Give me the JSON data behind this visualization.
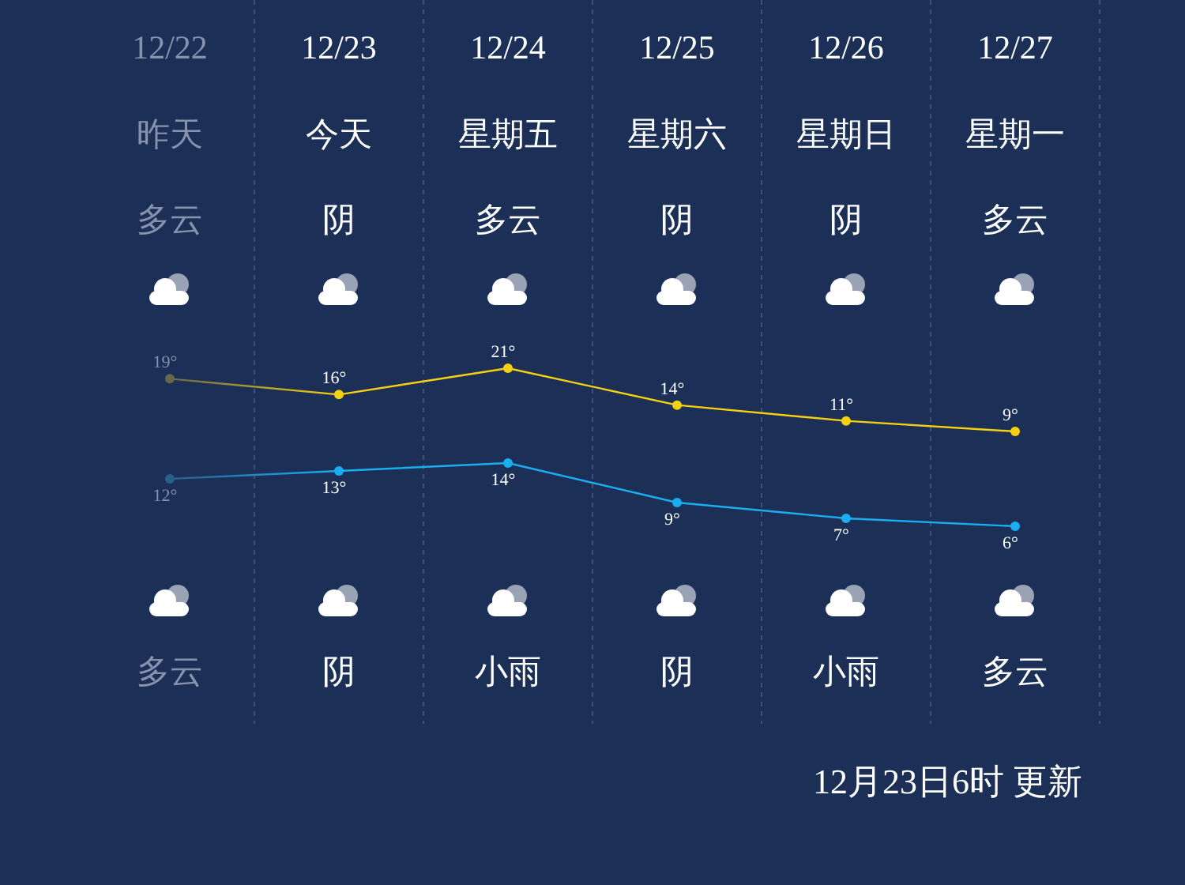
{
  "chart_data": [
    {
      "type": "line",
      "categories": [
        "12/22",
        "12/23",
        "12/24",
        "12/25",
        "12/26",
        "12/27"
      ],
      "series": [
        {
          "color": "#f5d10f",
          "colors": [
            "#67684a",
            "#f5d10f",
            "#f5d10f",
            "#f5d10f",
            "#f5d10f",
            "#f5d10f"
          ],
          "values": [
            19,
            16,
            21,
            14,
            11,
            9
          ],
          "value_labels": [
            "19°",
            "16°",
            "21°",
            "14°",
            "11°",
            "9°"
          ]
        }
      ],
      "grid": "x",
      "marker": "circle",
      "annotations": [
        "昨天",
        "今天",
        "星期五",
        "星期六",
        "星期日",
        "星期一",
        "多云",
        "阴",
        "多云",
        "阴",
        "阴",
        "多云"
      ]
    },
    {
      "type": "line",
      "categories": [
        null,
        null,
        null,
        null,
        null,
        null
      ],
      "series": [
        {
          "color": "#1aaef0",
          "colors": [
            "#2a5f8c",
            "#1aaef0",
            "#1aaef0",
            "#1aaef0",
            "#1aaef0",
            "#1aaef0"
          ],
          "values": [
            12,
            13,
            14,
            9,
            7,
            6
          ],
          "value_labels": [
            "12°",
            "13°",
            "14°",
            "9°",
            "7°",
            "6°"
          ]
        }
      ],
      "marker": "circle",
      "annotations": [
        "多云",
        "阴",
        "小雨",
        "阴",
        "小雨",
        "多云",
        "12月23日6时 更新"
      ]
    }
  ]
}
